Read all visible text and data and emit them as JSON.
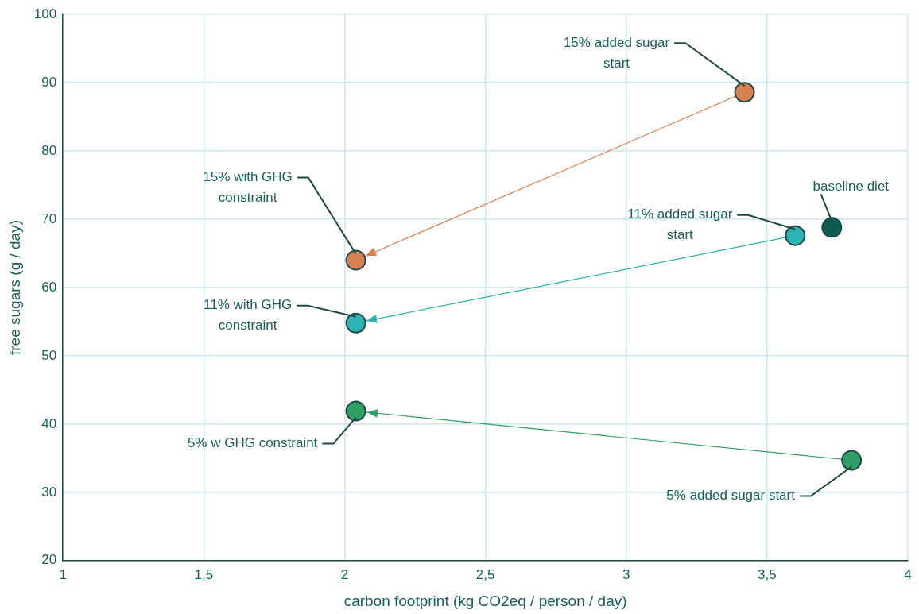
{
  "chart_data": {
    "type": "scatter",
    "xlabel": "carbon footprint (kg CO2eq / person / day)",
    "ylabel": "free sugars (g / day)",
    "xlim": [
      1,
      4
    ],
    "xticks": [
      1,
      {
        "value": 1.5,
        "label": "1,5"
      },
      2,
      {
        "value": 2.5,
        "label": "2,5"
      },
      3,
      {
        "value": 3.5,
        "label": "3,5"
      },
      4
    ],
    "ylim": [
      20,
      100
    ],
    "yticks": [
      20,
      30,
      40,
      50,
      60,
      70,
      80,
      90,
      100
    ],
    "grid": true,
    "legend": false,
    "marker": "circle",
    "series": [
      {
        "type": "line",
        "color": "#d9804f",
        "x": [
          3.42,
          2.04
        ],
        "values": [
          88.6,
          64.0
        ]
      },
      {
        "type": "line",
        "color": "#2bb3b5",
        "x": [
          3.6,
          2.04
        ],
        "values": [
          67.6,
          54.8
        ]
      },
      {
        "type": "line",
        "color": "#2e9e62",
        "x": [
          3.8,
          2.04
        ],
        "values": [
          34.7,
          41.9
        ]
      },
      {
        "type": "scatter",
        "color": "#0f5b53",
        "x": [
          3.73
        ],
        "values": [
          68.8
        ]
      }
    ],
    "annotations": [
      {
        "text": "15% added sugar start",
        "x": 3.42,
        "y": 88.6
      },
      {
        "text": "15% with GHG constraint",
        "x": 2.04,
        "y": 64.0
      },
      {
        "text": "11% added sugar start",
        "x": 3.6,
        "y": 67.6
      },
      {
        "text": "baseline diet",
        "x": 3.73,
        "y": 68.8
      },
      {
        "text": "11% with GHG constraint",
        "x": 2.04,
        "y": 54.8
      },
      {
        "text": "5% w GHG constraint",
        "x": 2.04,
        "y": 41.9
      },
      {
        "text": "5% added sugar start",
        "x": 3.8,
        "y": 34.7
      }
    ]
  }
}
